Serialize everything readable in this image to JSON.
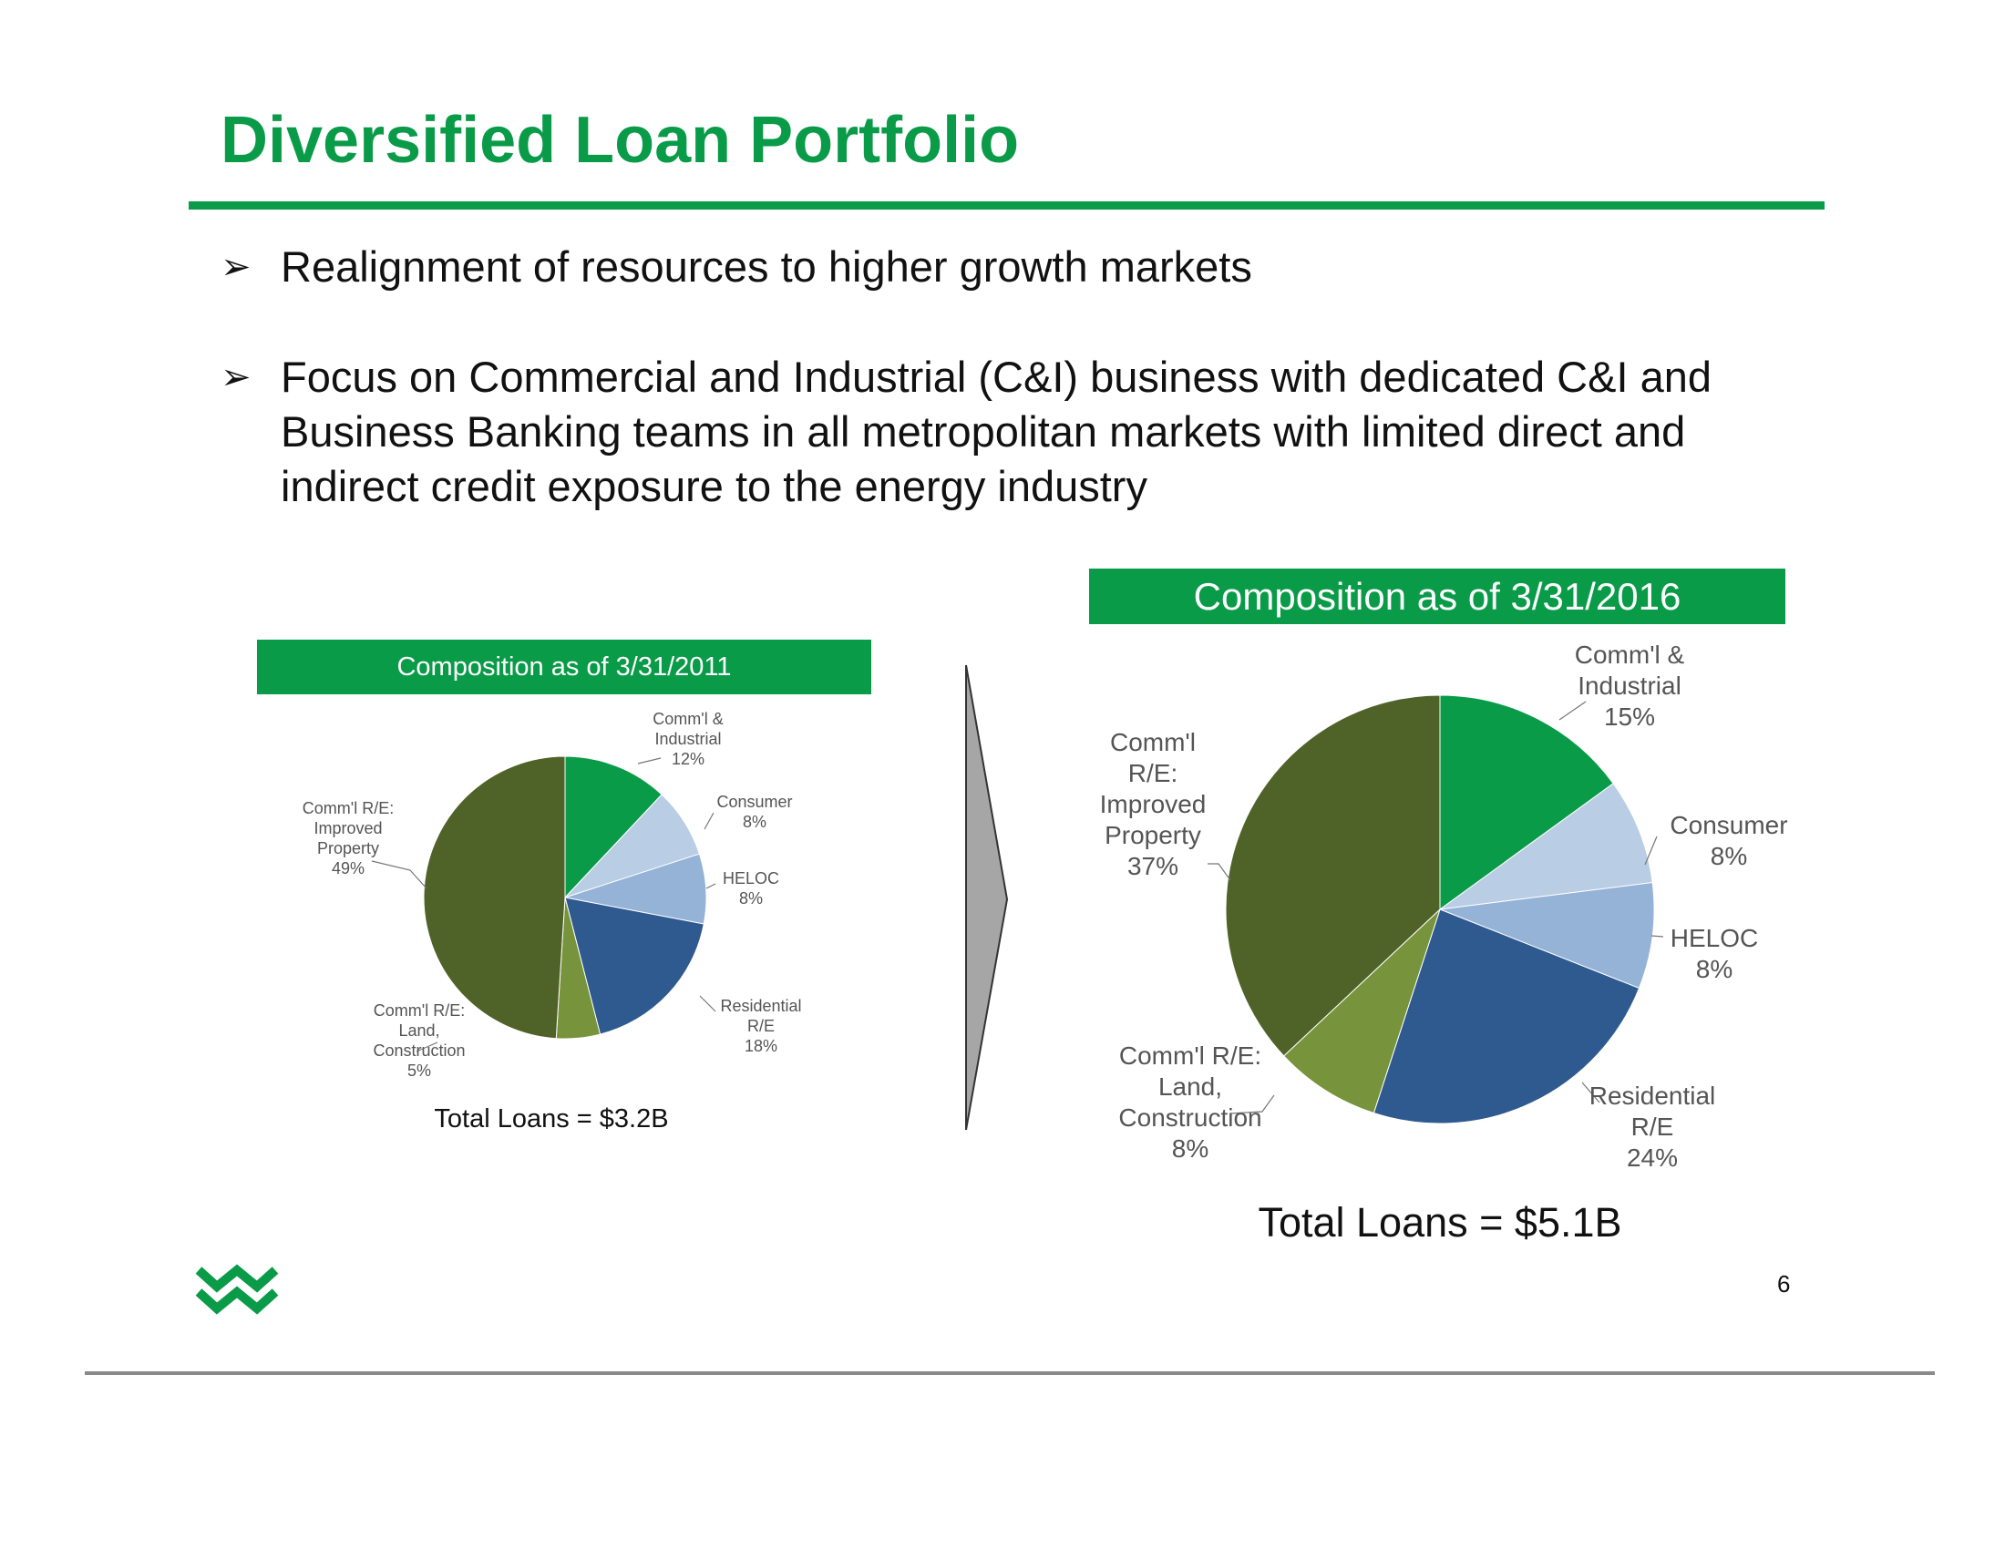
{
  "slide": {
    "title": "Diversified Loan Portfolio",
    "bullets": [
      "Realignment of resources to higher growth markets",
      "Focus on Commercial and Industrial (C&I) business with dedicated C&I and Business Banking teams in all metropolitan markets with limited direct and indirect credit exposure to the energy industry"
    ],
    "bullet_marker": "➢",
    "page_number": "6",
    "logo_icon": "double-chevron-w-logo-icon",
    "colors": {
      "brand_green": "#0a9b48",
      "rule_gray": "#8a8a8a",
      "transition_arrow": "#a6a6a6"
    }
  },
  "chart_data": [
    {
      "type": "pie",
      "title": "Composition as of 3/31/2011",
      "total_label": "Total Loans = $3.2B",
      "slices": [
        {
          "label_lines": [
            "Comm'l &",
            "Industrial",
            "12%"
          ],
          "value": 12,
          "color": "#0a9b48"
        },
        {
          "label_lines": [
            "Consumer",
            "8%"
          ],
          "value": 8,
          "color": "#b9cde4"
        },
        {
          "label_lines": [
            "HELOC",
            "8%"
          ],
          "value": 8,
          "color": "#95b3d7"
        },
        {
          "label_lines": [
            "Residential",
            "R/E",
            "18%"
          ],
          "value": 18,
          "color": "#2f5a8f"
        },
        {
          "label_lines": [
            "Comm'l R/E:",
            "Land,",
            "Construction",
            "5%"
          ],
          "value": 5,
          "color": "#77933c"
        },
        {
          "label_lines": [
            "Comm'l R/E:",
            "Improved",
            "Property",
            "49%"
          ],
          "value": 49,
          "color": "#4f6228"
        }
      ]
    },
    {
      "type": "pie",
      "title": "Composition as of 3/31/2016",
      "total_label": "Total Loans = $5.1B",
      "slices": [
        {
          "label_lines": [
            "Comm'l &",
            "Industrial",
            "15%"
          ],
          "value": 15,
          "color": "#0a9b48"
        },
        {
          "label_lines": [
            "Consumer",
            "8%"
          ],
          "value": 8,
          "color": "#b9cde4"
        },
        {
          "label_lines": [
            "HELOC",
            "8%"
          ],
          "value": 8,
          "color": "#95b3d7"
        },
        {
          "label_lines": [
            "Residential",
            "R/E",
            "24%"
          ],
          "value": 24,
          "color": "#2f5a8f"
        },
        {
          "label_lines": [
            "Comm'l R/E:",
            "Land,",
            "Construction",
            "8%"
          ],
          "value": 8,
          "color": "#77933c"
        },
        {
          "label_lines": [
            "Comm'l",
            "R/E:",
            "Improved",
            "Property",
            "37%"
          ],
          "value": 37,
          "color": "#4f6228"
        }
      ]
    }
  ]
}
